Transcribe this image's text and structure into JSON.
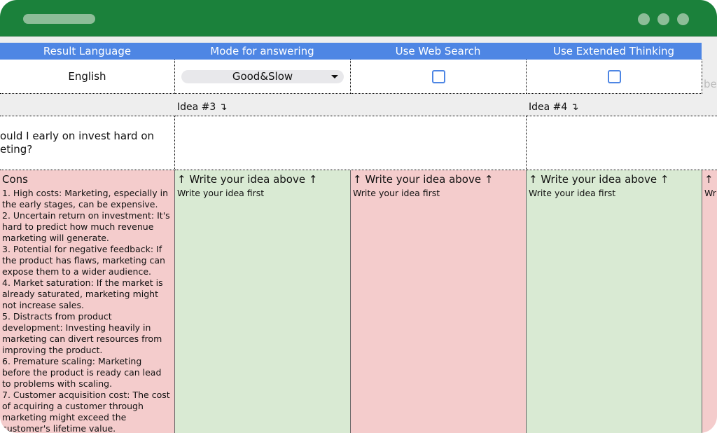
{
  "colors": {
    "titlebar": "#1b813b",
    "header": "#4e86e4",
    "cons_bg": "#f4cccc",
    "pros_bg": "#d9ead3"
  },
  "settings": {
    "headers": [
      "Result Language",
      "Mode for answering",
      "Use Web Search",
      "Use Extended Thinking"
    ],
    "language": "English",
    "mode": "Good&Slow",
    "web_search_checked": false,
    "extended_thinking_checked": false,
    "overflow_text": "be"
  },
  "ideas": {
    "idea3_label": "Idea #3 ↴",
    "idea4_label": "Idea #4 ↴"
  },
  "question": {
    "line1": "ould I early on invest hard on",
    "line2": "eting?"
  },
  "cons": {
    "title": "Cons",
    "body": "1. High costs: Marketing, especially in the early stages, can be expensive.\n2. Uncertain return on investment: It's hard to predict how much revenue marketing will generate.\n3. Potential for negative feedback: If the product has flaws, marketing can expose them to a wider audience.\n4. Market saturation: If the market is already saturated, marketing might not increase sales.\n5. Distracts from product development: Investing heavily in marketing can divert resources from improving the product.\n6. Premature scaling: Marketing before the product is ready can lead to problems with scaling.\n7. Customer acquisition cost: The cost of acquiring a customer through marketing might exceed the customer's lifetime value."
  },
  "placeholder": {
    "title": "↑ Write your idea above ↑",
    "body": "Write your idea first",
    "partial_title": "↑",
    "partial_body": "Wr"
  }
}
